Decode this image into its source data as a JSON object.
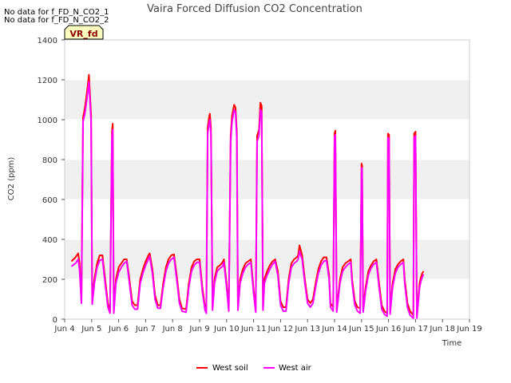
{
  "notes": [
    "No data for f_FD_N_CO2_1",
    "No data for f_FD_N_CO2_2"
  ],
  "badge": "VR_fd",
  "colors": {
    "band": "#f0f0f0",
    "grid": "#ffffff",
    "axis": "#cccccc"
  },
  "chart_data": {
    "type": "line",
    "title": "Vaira Forced Diffusion CO2 Concentration",
    "xlabel": "Time",
    "ylabel": "CO2 (ppm)",
    "xlim": [
      4,
      19
    ],
    "ylim": [
      0,
      1400
    ],
    "x_ticks": [
      4,
      5,
      6,
      7,
      8,
      9,
      10,
      11,
      12,
      13,
      14,
      15,
      16,
      17,
      18,
      19
    ],
    "x_tick_labels": [
      "Jun 4",
      "Jun 5",
      "Jun 6",
      "Jun 7",
      "Jun 8",
      "Jun 9",
      "Jun 10",
      "Jun 11",
      "Jun 12",
      "Jun 13",
      "Jun 14",
      "Jun 15",
      "Jun 16",
      "Jun 17",
      "Jun 18",
      "Jun 19"
    ],
    "y_ticks": [
      0,
      200,
      400,
      600,
      800,
      1000,
      1200,
      1400
    ],
    "legend_position": "bottom-center",
    "series": [
      {
        "name": "West soil",
        "color": "#ff0000",
        "points": [
          [
            4.25,
            290
          ],
          [
            4.4,
            310
          ],
          [
            4.5,
            330
          ],
          [
            4.55,
            280
          ],
          [
            4.62,
            90
          ],
          [
            4.68,
            1010
          ],
          [
            4.75,
            1060
          ],
          [
            4.82,
            1130
          ],
          [
            4.9,
            1225
          ],
          [
            4.98,
            1020
          ],
          [
            5.02,
            90
          ],
          [
            5.1,
            200
          ],
          [
            5.2,
            280
          ],
          [
            5.3,
            320
          ],
          [
            5.4,
            320
          ],
          [
            5.5,
            200
          ],
          [
            5.6,
            80
          ],
          [
            5.68,
            40
          ],
          [
            5.75,
            940
          ],
          [
            5.78,
            980
          ],
          [
            5.82,
            40
          ],
          [
            5.9,
            200
          ],
          [
            6.0,
            260
          ],
          [
            6.1,
            280
          ],
          [
            6.2,
            300
          ],
          [
            6.3,
            300
          ],
          [
            6.4,
            200
          ],
          [
            6.5,
            90
          ],
          [
            6.6,
            70
          ],
          [
            6.7,
            70
          ],
          [
            6.8,
            200
          ],
          [
            6.9,
            250
          ],
          [
            7.0,
            290
          ],
          [
            7.1,
            320
          ],
          [
            7.15,
            330
          ],
          [
            7.25,
            250
          ],
          [
            7.35,
            120
          ],
          [
            7.45,
            70
          ],
          [
            7.55,
            70
          ],
          [
            7.65,
            180
          ],
          [
            7.75,
            260
          ],
          [
            7.85,
            300
          ],
          [
            7.95,
            320
          ],
          [
            8.05,
            325
          ],
          [
            8.15,
            220
          ],
          [
            8.25,
            100
          ],
          [
            8.35,
            55
          ],
          [
            8.5,
            50
          ],
          [
            8.6,
            180
          ],
          [
            8.7,
            260
          ],
          [
            8.8,
            290
          ],
          [
            8.9,
            300
          ],
          [
            9.0,
            300
          ],
          [
            9.1,
            160
          ],
          [
            9.2,
            60
          ],
          [
            9.25,
            40
          ],
          [
            9.3,
            960
          ],
          [
            9.35,
            1010
          ],
          [
            9.38,
            1030
          ],
          [
            9.42,
            960
          ],
          [
            9.48,
            60
          ],
          [
            9.55,
            200
          ],
          [
            9.65,
            260
          ],
          [
            9.75,
            270
          ],
          [
            9.85,
            285
          ],
          [
            9.9,
            300
          ],
          [
            10.0,
            180
          ],
          [
            10.08,
            50
          ],
          [
            10.15,
            920
          ],
          [
            10.2,
            1020
          ],
          [
            10.28,
            1075
          ],
          [
            10.33,
            1060
          ],
          [
            10.38,
            940
          ],
          [
            10.42,
            60
          ],
          [
            10.5,
            200
          ],
          [
            10.6,
            250
          ],
          [
            10.7,
            280
          ],
          [
            10.8,
            290
          ],
          [
            10.9,
            300
          ],
          [
            11.0,
            150
          ],
          [
            11.08,
            50
          ],
          [
            11.13,
            920
          ],
          [
            11.2,
            950
          ],
          [
            11.25,
            1085
          ],
          [
            11.3,
            1070
          ],
          [
            11.35,
            60
          ],
          [
            11.4,
            200
          ],
          [
            11.5,
            240
          ],
          [
            11.6,
            270
          ],
          [
            11.7,
            290
          ],
          [
            11.8,
            300
          ],
          [
            11.9,
            240
          ],
          [
            12.0,
            90
          ],
          [
            12.1,
            60
          ],
          [
            12.2,
            60
          ],
          [
            12.3,
            200
          ],
          [
            12.4,
            280
          ],
          [
            12.5,
            300
          ],
          [
            12.6,
            310
          ],
          [
            12.65,
            320
          ],
          [
            12.7,
            370
          ],
          [
            12.8,
            320
          ],
          [
            12.9,
            200
          ],
          [
            13.0,
            100
          ],
          [
            13.1,
            80
          ],
          [
            13.2,
            100
          ],
          [
            13.3,
            180
          ],
          [
            13.4,
            250
          ],
          [
            13.5,
            290
          ],
          [
            13.6,
            310
          ],
          [
            13.7,
            310
          ],
          [
            13.8,
            220
          ],
          [
            13.85,
            80
          ],
          [
            13.95,
            60
          ],
          [
            14.0,
            930
          ],
          [
            14.03,
            945
          ],
          [
            14.08,
            50
          ],
          [
            14.2,
            200
          ],
          [
            14.3,
            260
          ],
          [
            14.4,
            280
          ],
          [
            14.5,
            290
          ],
          [
            14.6,
            300
          ],
          [
            14.65,
            200
          ],
          [
            14.75,
            90
          ],
          [
            14.85,
            60
          ],
          [
            14.95,
            55
          ],
          [
            15.0,
            780
          ],
          [
            15.02,
            770
          ],
          [
            15.06,
            50
          ],
          [
            15.15,
            160
          ],
          [
            15.25,
            240
          ],
          [
            15.35,
            270
          ],
          [
            15.45,
            290
          ],
          [
            15.55,
            300
          ],
          [
            15.65,
            180
          ],
          [
            15.75,
            70
          ],
          [
            15.85,
            40
          ],
          [
            15.95,
            30
          ],
          [
            15.98,
            930
          ],
          [
            16.02,
            925
          ],
          [
            16.06,
            40
          ],
          [
            16.15,
            180
          ],
          [
            16.25,
            250
          ],
          [
            16.35,
            275
          ],
          [
            16.45,
            290
          ],
          [
            16.55,
            300
          ],
          [
            16.6,
            200
          ],
          [
            16.7,
            80
          ],
          [
            16.8,
            40
          ],
          [
            16.92,
            20
          ],
          [
            16.95,
            930
          ],
          [
            17.0,
            940
          ],
          [
            17.05,
            20
          ],
          [
            17.15,
            180
          ],
          [
            17.2,
            210
          ],
          [
            17.25,
            230
          ],
          [
            17.3,
            240
          ]
        ]
      },
      {
        "name": "West air",
        "color": "#ff00ff",
        "points": [
          [
            4.25,
            265
          ],
          [
            4.4,
            280
          ],
          [
            4.5,
            300
          ],
          [
            4.55,
            250
          ],
          [
            4.62,
            80
          ],
          [
            4.68,
            990
          ],
          [
            4.75,
            1030
          ],
          [
            4.82,
            1100
          ],
          [
            4.9,
            1190
          ],
          [
            4.98,
            990
          ],
          [
            5.02,
            75
          ],
          [
            5.1,
            180
          ],
          [
            5.2,
            260
          ],
          [
            5.3,
            295
          ],
          [
            5.4,
            300
          ],
          [
            5.5,
            180
          ],
          [
            5.6,
            60
          ],
          [
            5.68,
            30
          ],
          [
            5.75,
            910
          ],
          [
            5.78,
            950
          ],
          [
            5.82,
            30
          ],
          [
            5.9,
            180
          ],
          [
            6.0,
            235
          ],
          [
            6.1,
            260
          ],
          [
            6.2,
            280
          ],
          [
            6.3,
            290
          ],
          [
            6.4,
            180
          ],
          [
            6.5,
            70
          ],
          [
            6.6,
            50
          ],
          [
            6.7,
            50
          ],
          [
            6.8,
            180
          ],
          [
            6.9,
            230
          ],
          [
            7.0,
            270
          ],
          [
            7.1,
            300
          ],
          [
            7.15,
            315
          ],
          [
            7.25,
            230
          ],
          [
            7.35,
            100
          ],
          [
            7.45,
            55
          ],
          [
            7.55,
            55
          ],
          [
            7.65,
            160
          ],
          [
            7.75,
            240
          ],
          [
            7.85,
            280
          ],
          [
            7.95,
            300
          ],
          [
            8.05,
            310
          ],
          [
            8.15,
            200
          ],
          [
            8.25,
            80
          ],
          [
            8.35,
            40
          ],
          [
            8.5,
            35
          ],
          [
            8.6,
            160
          ],
          [
            8.7,
            240
          ],
          [
            8.8,
            270
          ],
          [
            8.9,
            285
          ],
          [
            9.0,
            285
          ],
          [
            9.1,
            140
          ],
          [
            9.2,
            45
          ],
          [
            9.25,
            30
          ],
          [
            9.3,
            930
          ],
          [
            9.35,
            980
          ],
          [
            9.38,
            1000
          ],
          [
            9.42,
            930
          ],
          [
            9.48,
            45
          ],
          [
            9.55,
            180
          ],
          [
            9.65,
            240
          ],
          [
            9.75,
            255
          ],
          [
            9.85,
            265
          ],
          [
            9.9,
            285
          ],
          [
            10.0,
            160
          ],
          [
            10.08,
            40
          ],
          [
            10.15,
            890
          ],
          [
            10.2,
            990
          ],
          [
            10.28,
            1050
          ],
          [
            10.33,
            1035
          ],
          [
            10.38,
            910
          ],
          [
            10.42,
            45
          ],
          [
            10.5,
            180
          ],
          [
            10.6,
            230
          ],
          [
            10.7,
            260
          ],
          [
            10.8,
            275
          ],
          [
            10.9,
            285
          ],
          [
            11.0,
            130
          ],
          [
            11.08,
            35
          ],
          [
            11.13,
            890
          ],
          [
            11.2,
            920
          ],
          [
            11.25,
            1050
          ],
          [
            11.3,
            1040
          ],
          [
            11.35,
            45
          ],
          [
            11.4,
            180
          ],
          [
            11.5,
            220
          ],
          [
            11.6,
            250
          ],
          [
            11.7,
            275
          ],
          [
            11.8,
            290
          ],
          [
            11.9,
            220
          ],
          [
            12.0,
            70
          ],
          [
            12.1,
            40
          ],
          [
            12.2,
            40
          ],
          [
            12.3,
            180
          ],
          [
            12.4,
            260
          ],
          [
            12.5,
            280
          ],
          [
            12.6,
            290
          ],
          [
            12.65,
            300
          ],
          [
            12.7,
            340
          ],
          [
            12.8,
            300
          ],
          [
            12.9,
            180
          ],
          [
            13.0,
            80
          ],
          [
            13.1,
            60
          ],
          [
            13.2,
            80
          ],
          [
            13.3,
            160
          ],
          [
            13.4,
            230
          ],
          [
            13.5,
            270
          ],
          [
            13.6,
            290
          ],
          [
            13.7,
            295
          ],
          [
            13.8,
            200
          ],
          [
            13.85,
            60
          ],
          [
            13.95,
            40
          ],
          [
            14.0,
            910
          ],
          [
            14.03,
            925
          ],
          [
            14.08,
            35
          ],
          [
            14.2,
            180
          ],
          [
            14.3,
            240
          ],
          [
            14.4,
            260
          ],
          [
            14.5,
            275
          ],
          [
            14.6,
            285
          ],
          [
            14.65,
            180
          ],
          [
            14.75,
            70
          ],
          [
            14.85,
            40
          ],
          [
            14.95,
            30
          ],
          [
            15.0,
            760
          ],
          [
            15.02,
            750
          ],
          [
            15.06,
            35
          ],
          [
            15.15,
            140
          ],
          [
            15.25,
            220
          ],
          [
            15.35,
            255
          ],
          [
            15.45,
            275
          ],
          [
            15.55,
            285
          ],
          [
            15.65,
            160
          ],
          [
            15.75,
            50
          ],
          [
            15.85,
            25
          ],
          [
            15.95,
            15
          ],
          [
            15.98,
            910
          ],
          [
            16.02,
            900
          ],
          [
            16.06,
            25
          ],
          [
            16.15,
            160
          ],
          [
            16.25,
            230
          ],
          [
            16.35,
            260
          ],
          [
            16.45,
            275
          ],
          [
            16.55,
            285
          ],
          [
            16.6,
            180
          ],
          [
            16.7,
            60
          ],
          [
            16.8,
            20
          ],
          [
            16.92,
            5
          ],
          [
            16.95,
            910
          ],
          [
            17.0,
            920
          ],
          [
            17.05,
            5
          ],
          [
            17.15,
            160
          ],
          [
            17.2,
            190
          ],
          [
            17.25,
            210
          ],
          [
            17.3,
            225
          ]
        ]
      }
    ]
  }
}
